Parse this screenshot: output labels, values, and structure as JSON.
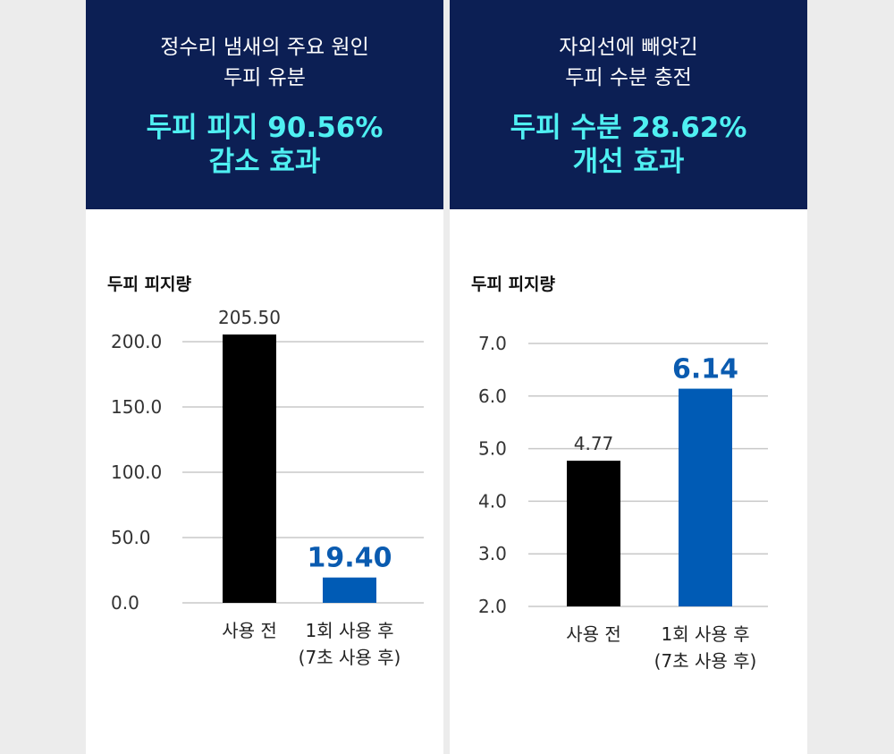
{
  "colors": {
    "header_bg": "#0c1f54",
    "highlight_text": "#4ff0f2",
    "bar_before": "#000000",
    "bar_after": "#005bb5"
  },
  "panels": [
    {
      "header": {
        "subtitle_line1": "정수리 냄새의 주요 원인",
        "subtitle_line2": "두피 유분",
        "highlight_line1": "두피 피지 90.56%",
        "highlight_line2": "감소 효과"
      },
      "chart_title": "두피 피지량"
    },
    {
      "header": {
        "subtitle_line1": "자외선에 빼앗긴",
        "subtitle_line2": "두피 수분 충전",
        "highlight_line1": "두피 수분 28.62%",
        "highlight_line2": "개선 효과"
      },
      "chart_title": "두피 피지량"
    }
  ],
  "chart_data": [
    {
      "type": "bar",
      "title": "두피 피지량",
      "categories": [
        [
          "사용 전"
        ],
        [
          "1회 사용 후",
          "(7초 사용 후)"
        ]
      ],
      "values": [
        205.5,
        19.4
      ],
      "value_labels": [
        "205.50",
        "19.40"
      ],
      "yticks": [
        "200.0",
        "150.0",
        "100.0",
        "50.0",
        "0.0"
      ],
      "ylim": [
        0,
        200
      ],
      "bar_colors": [
        "#000000",
        "#005bb5"
      ],
      "label_colors": [
        "#333333",
        "#0a5bb0"
      ]
    },
    {
      "type": "bar",
      "title": "두피 피지량",
      "categories": [
        [
          "사용 전"
        ],
        [
          "1회 사용 후",
          "(7초 사용 후)"
        ]
      ],
      "values": [
        4.77,
        6.14
      ],
      "value_labels": [
        "4.77",
        "6.14"
      ],
      "yticks": [
        "7.0",
        "6.0",
        "5.0",
        "4.0",
        "3.0",
        "2.0"
      ],
      "ylim": [
        2,
        7
      ],
      "bar_colors": [
        "#000000",
        "#005bb5"
      ],
      "label_colors": [
        "#333333",
        "#0a5bb0"
      ]
    }
  ]
}
